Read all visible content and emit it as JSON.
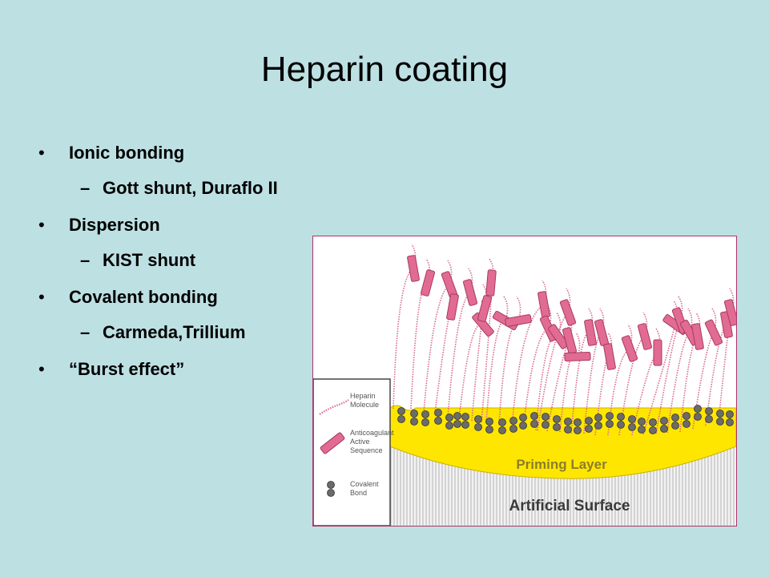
{
  "slide": {
    "title": "Heparin coating",
    "bullets": [
      {
        "bullet": "•",
        "text": "Ionic bonding",
        "sub": {
          "dash": "–",
          "text": "Gott shunt, Duraflo II"
        }
      },
      {
        "bullet": "•",
        "text": "Dispersion",
        "sub": {
          "dash": "–",
          "text": "KIST shunt"
        }
      },
      {
        "bullet": "•",
        "text": "Covalent bonding",
        "sub": {
          "dash": "–",
          "text": "Carmeda,Trillium"
        }
      },
      {
        "bullet": "•",
        "text": "“Burst effect”"
      }
    ]
  },
  "figure": {
    "legend": {
      "heparin": [
        "Heparin",
        "Molecule"
      ],
      "sequence": [
        "Anticoagulant",
        "Active",
        "Sequence"
      ],
      "bond": [
        "Covalent",
        "Bond"
      ]
    },
    "priming_label": "Priming Layer",
    "surface_label": "Artificial Surface"
  },
  "colors": {
    "background": "#bde0e3",
    "sequence_fill": "#e26b93",
    "sequence_stroke": "#a63a63",
    "strand": "#d76a8e",
    "priming": "#ffe600",
    "bond": "#6b6b6b",
    "frame": "#b0336a"
  }
}
